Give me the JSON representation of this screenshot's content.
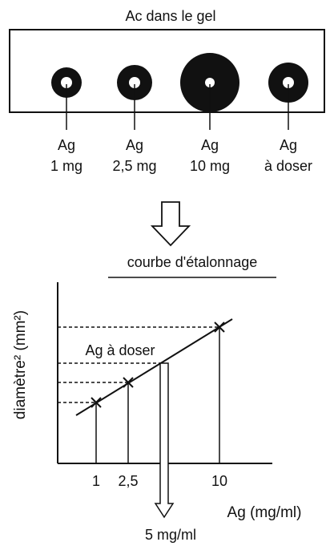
{
  "gel": {
    "title": "Ac dans le gel",
    "wells": [
      {
        "label": "Ag",
        "amount": "1 mg"
      },
      {
        "label": "Ag",
        "amount": "2,5 mg"
      },
      {
        "label": "Ag",
        "amount": "10 mg"
      },
      {
        "label": "Ag",
        "amount": "à doser"
      }
    ]
  },
  "graph": {
    "title": "courbe d'étalonnage",
    "y_label": "diamètre² (mm²)",
    "x_label": "Ag (mg/ml)",
    "x_ticks": [
      "1",
      "2,5",
      "10"
    ],
    "unknown_label": "Ag à doser",
    "result": "5 mg/ml"
  }
}
